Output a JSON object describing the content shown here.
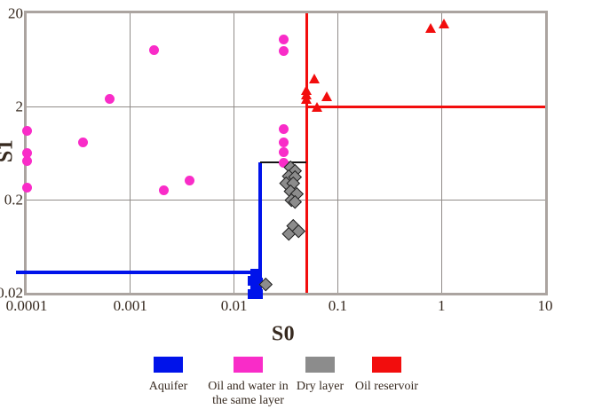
{
  "chart_data": {
    "type": "scatter",
    "title": "",
    "xlabel": "S0",
    "ylabel": "S1",
    "x_scale": "log",
    "y_scale": "log",
    "xlim": [
      0.0001,
      10
    ],
    "ylim": [
      0.02,
      20
    ],
    "grid": true,
    "x_ticks": [
      {
        "value": 0.0001,
        "label": "0.0001"
      },
      {
        "value": 0.001,
        "label": "0.001"
      },
      {
        "value": 0.01,
        "label": "0.01"
      },
      {
        "value": 0.1,
        "label": "0.1"
      },
      {
        "value": 1,
        "label": "1"
      },
      {
        "value": 10,
        "label": "10"
      }
    ],
    "y_ticks": [
      {
        "value": 20,
        "label": "20"
      },
      {
        "value": 2,
        "label": "2"
      },
      {
        "value": 0.2,
        "label": "0.2"
      },
      {
        "value": 0.02,
        "label": "0.02"
      }
    ],
    "x_gridlines": [
      0.001,
      0.01,
      0.1,
      1
    ],
    "y_gridlines": [
      2,
      0.2
    ],
    "series": [
      {
        "name": "Aquifer",
        "marker": "square",
        "color": "#0013ea",
        "points": [
          [
            0.016,
            0.032
          ],
          [
            0.015,
            0.027
          ],
          [
            0.017,
            0.026
          ],
          [
            0.016,
            0.023
          ],
          [
            0.0165,
            0.021
          ],
          [
            0.015,
            0.0195
          ],
          [
            0.017,
            0.0195
          ]
        ]
      },
      {
        "name": "Oil and water in the same layer",
        "marker": "circle",
        "color": "#f92cc8",
        "points": [
          [
            0.0001,
            1.1
          ],
          [
            0.0001,
            0.63
          ],
          [
            0.0001,
            0.52
          ],
          [
            0.0001,
            0.27
          ],
          [
            0.00035,
            0.83
          ],
          [
            0.00063,
            2.4
          ],
          [
            0.0017,
            8.1
          ],
          [
            0.0021,
            0.25
          ],
          [
            0.0037,
            0.32
          ],
          [
            0.03,
            10.4
          ],
          [
            0.03,
            7.8
          ],
          [
            0.03,
            1.15
          ],
          [
            0.03,
            0.83
          ],
          [
            0.03,
            0.64
          ],
          [
            0.03,
            0.5
          ]
        ]
      },
      {
        "name": "Dry layer",
        "marker": "diamond",
        "color": "#8c8c8c",
        "points": [
          [
            0.035,
            0.45
          ],
          [
            0.039,
            0.41
          ],
          [
            0.034,
            0.36
          ],
          [
            0.039,
            0.35
          ],
          [
            0.032,
            0.3
          ],
          [
            0.037,
            0.3
          ],
          [
            0.035,
            0.25
          ],
          [
            0.04,
            0.23
          ],
          [
            0.036,
            0.2
          ],
          [
            0.039,
            0.19
          ],
          [
            0.037,
            0.105
          ],
          [
            0.034,
            0.087
          ],
          [
            0.042,
            0.093
          ],
          [
            0.02,
            0.025
          ]
        ]
      },
      {
        "name": "Oil reservoir",
        "marker": "triangle",
        "color": "#f20d0d",
        "points": [
          [
            0.06,
            4.0
          ],
          [
            0.05,
            3.0
          ],
          [
            0.05,
            2.7
          ],
          [
            0.05,
            2.4
          ],
          [
            0.078,
            2.6
          ],
          [
            0.063,
            2.0
          ],
          [
            0.79,
            14
          ],
          [
            1.06,
            15.5
          ]
        ]
      }
    ],
    "boundary_lines": [
      {
        "name": "oil-reservoir-vertical-cutoff",
        "color": "#f20d0d",
        "orientation": "vertical",
        "x": 0.05,
        "y_from": 0.02,
        "y_to": 20
      },
      {
        "name": "oil-reservoir-horizontal-cutoff",
        "color": "#f20d0d",
        "orientation": "horizontal",
        "y": 2,
        "x_from": 0.05,
        "x_to": 10
      },
      {
        "name": "aquifer-horizontal-cutoff",
        "color": "#0013ea",
        "orientation": "horizontal",
        "y": 0.033,
        "x_from": 7.9e-05,
        "x_to": 0.0185
      },
      {
        "name": "aquifer-vertical-cutoff",
        "color": "#0013ea",
        "orientation": "vertical",
        "x": 0.018,
        "y_from": 0.02,
        "y_to": 0.5
      },
      {
        "name": "dry-layer-upper-cutoff",
        "color": "#151515",
        "orientation": "horizontal",
        "y": 0.5,
        "x_from": 0.018,
        "x_to": 0.05
      }
    ],
    "legend": [
      {
        "label": "Aquifer",
        "color": "#0013ea"
      },
      {
        "label": "Oil and water in\nthe same layer",
        "color": "#f92cc8"
      },
      {
        "label": "Dry layer",
        "color": "#8c8c8c"
      },
      {
        "label": "Oil reservoir",
        "color": "#f20d0d"
      }
    ]
  }
}
